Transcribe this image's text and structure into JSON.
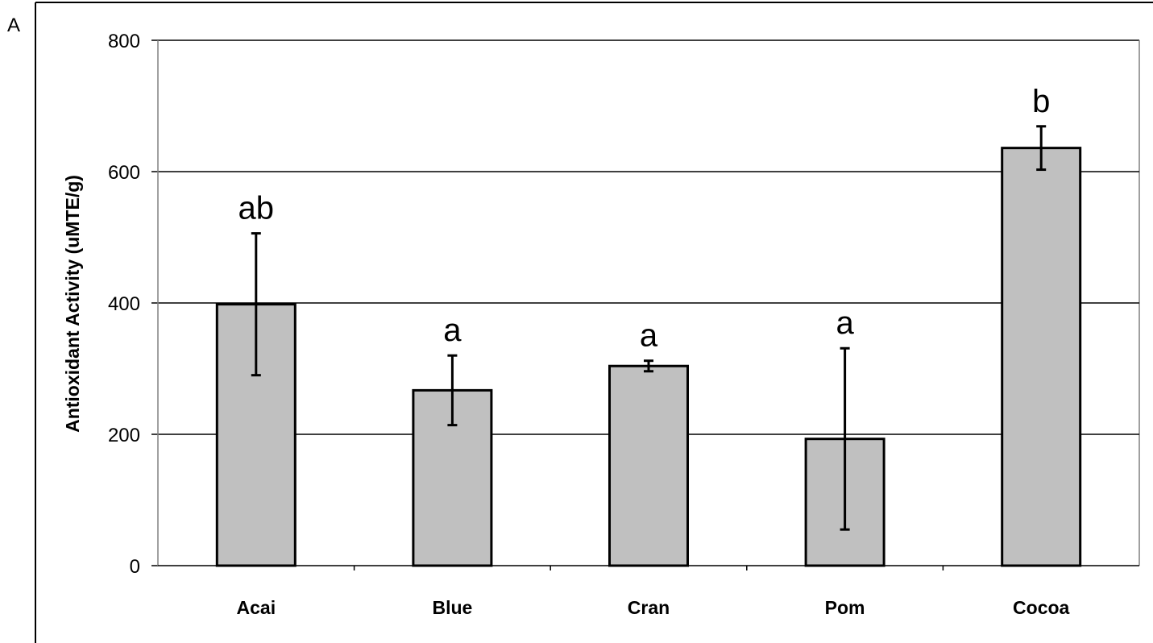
{
  "panel_label": "A",
  "chart_data": {
    "type": "bar",
    "title": "",
    "xlabel": "",
    "ylabel": "Antioxidant Activity (uMTE/g)",
    "ylim": [
      0,
      800
    ],
    "yticks": [
      0,
      200,
      400,
      600,
      800
    ],
    "grid": true,
    "categories": [
      "Acai",
      "Blue",
      "Cran",
      "Pom",
      "Cocoa"
    ],
    "values": [
      398,
      267,
      304,
      193,
      636
    ],
    "error": [
      108,
      53,
      8,
      138,
      33
    ],
    "annotations": [
      "ab",
      "a",
      "a",
      "a",
      "b"
    ],
    "colors": {
      "bar_fill": "#c0c0c0",
      "bar_stroke": "#000000",
      "grid": "#000000",
      "axis": "#808080"
    }
  }
}
